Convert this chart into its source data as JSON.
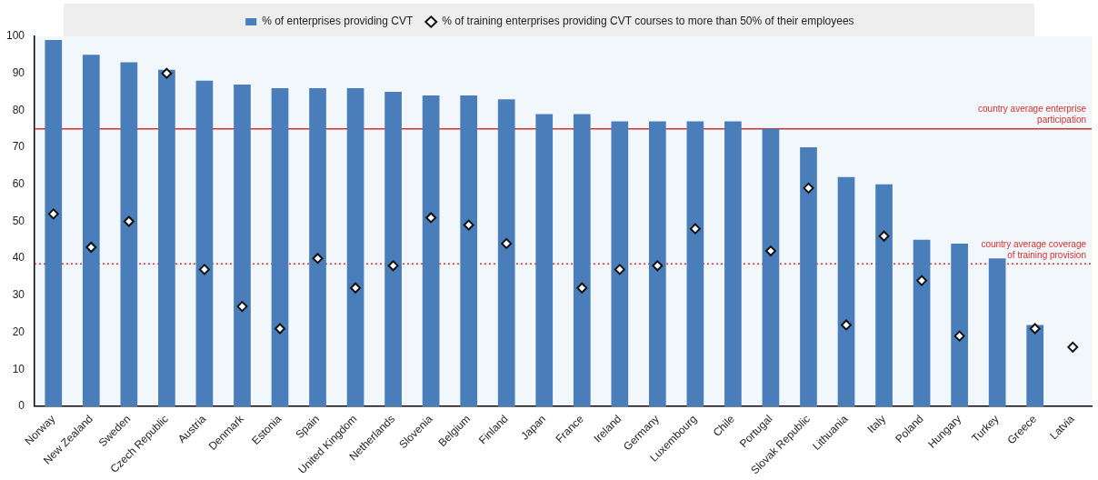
{
  "chart_data": {
    "type": "bar",
    "categories": [
      "Norway",
      "New Zealand",
      "Sweden",
      "Czech Republic",
      "Austria",
      "Denmark",
      "Estonia",
      "Spain",
      "United Kingdom",
      "Netherlands",
      "Slovenia",
      "Belgium",
      "Finland",
      "Japan",
      "France",
      "Ireland",
      "Germany",
      "Luxembourg",
      "Chile",
      "Portugal",
      "Slovak Republic",
      "Lithuania",
      "Italy",
      "Poland",
      "Hungary",
      "Turkey",
      "Greece",
      "Latvia"
    ],
    "series": [
      {
        "name": "% of enterprises providing CVT",
        "color": "#4a7ebb",
        "values": [
          99,
          95,
          93,
          91,
          88,
          87,
          86,
          86,
          86,
          85,
          84,
          84,
          83,
          79,
          79,
          77,
          77,
          77,
          77,
          75,
          70,
          62,
          60,
          45,
          44,
          40,
          22,
          null
        ]
      },
      {
        "name": "% of training enterprises providing CVT courses to more than 50% of their employees",
        "type": "scatter",
        "color": "#ffffff",
        "marker": "diamond",
        "x": [
          "Norway",
          "New Zealand",
          "Sweden",
          "Czech Republic",
          "Austria",
          "Denmark",
          "Estonia",
          "Spain",
          "United Kingdom",
          "Netherlands",
          "Slovenia",
          "Belgium",
          "Finland",
          "Japan",
          "France",
          "Ireland",
          "Germany",
          "Luxembourg",
          "Chile",
          "Portugal",
          "Slovak Republic",
          "Lithuania",
          "Italy",
          "Poland",
          "Hungary",
          "Turkey",
          "Greece",
          "Latvia"
        ],
        "values": [
          52,
          43,
          50,
          90,
          37,
          27,
          21,
          40,
          32,
          38,
          51,
          49,
          44,
          null,
          32,
          37,
          38,
          48,
          null,
          42,
          59,
          22,
          46,
          34,
          19,
          null,
          21,
          16
        ]
      }
    ],
    "ylim": [
      0,
      100
    ],
    "yticks": [
      0,
      10,
      20,
      30,
      40,
      50,
      60,
      70,
      80,
      90,
      100
    ],
    "ref_lines": [
      {
        "axis": "y",
        "value": 75,
        "label": "country average enterprise participation",
        "color": "#d9302c",
        "line_style": "solid"
      },
      {
        "axis": "y",
        "value": 38.5,
        "label": "country average coverage of training provision",
        "color": "#d9302c",
        "line_style": "dotted"
      }
    ],
    "legend": "top",
    "grid": false
  }
}
